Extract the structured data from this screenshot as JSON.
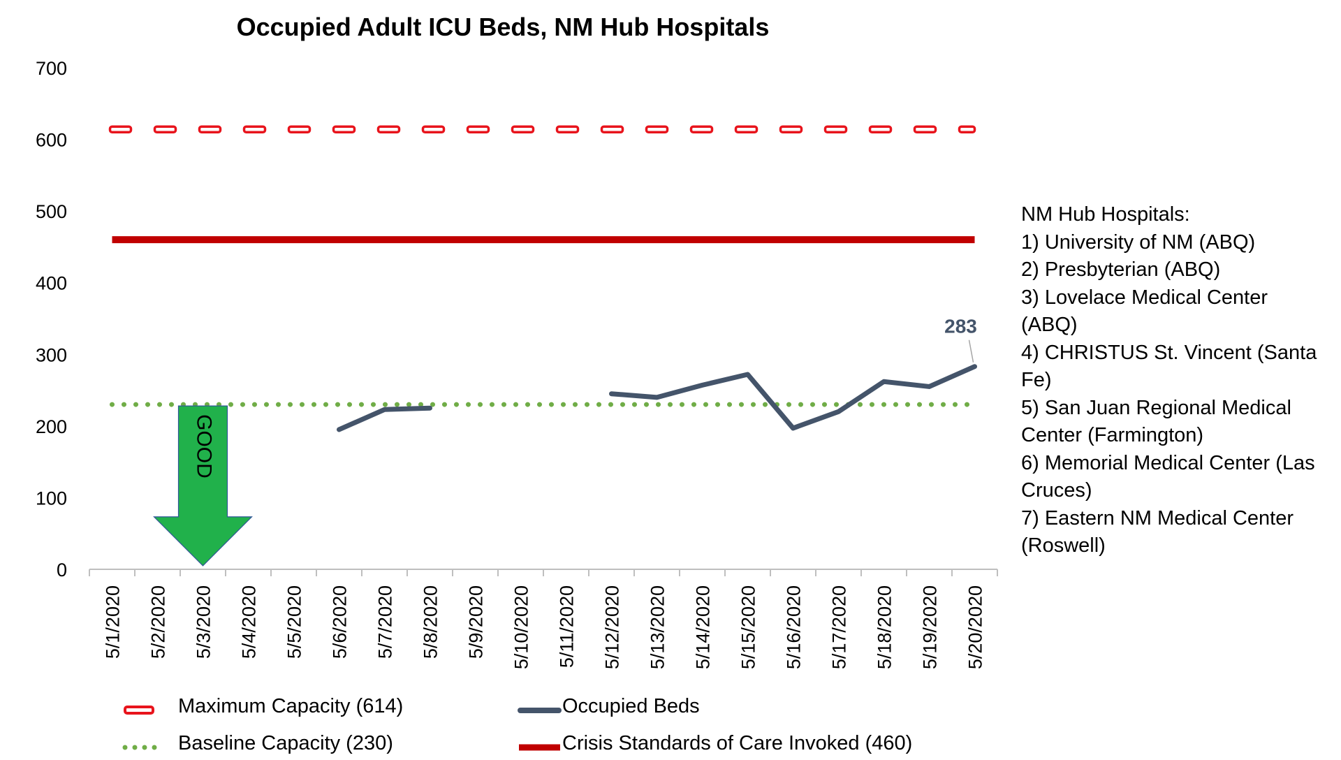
{
  "chart_data": {
    "type": "line",
    "title": "Occupied Adult ICU Beds, NM Hub Hospitals",
    "xlabel": "",
    "ylabel": "",
    "ylim": [
      0,
      700
    ],
    "yticks": [
      "0",
      "100",
      "200",
      "300",
      "400",
      "500",
      "600",
      "700"
    ],
    "categories": [
      "5/1/2020",
      "5/2/2020",
      "5/3/2020",
      "5/4/2020",
      "5/5/2020",
      "5/6/2020",
      "5/7/2020",
      "5/8/2020",
      "5/9/2020",
      "5/10/2020",
      "5/11/2020",
      "5/12/2020",
      "5/13/2020",
      "5/14/2020",
      "5/15/2020",
      "5/16/2020",
      "5/17/2020",
      "5/18/2020",
      "5/19/2020",
      "5/20/2020"
    ],
    "series": [
      {
        "name": "Maximum Capacity (614)",
        "style": "dashed-red-outline",
        "color": "#E8141C",
        "values": [
          614,
          614,
          614,
          614,
          614,
          614,
          614,
          614,
          614,
          614,
          614,
          614,
          614,
          614,
          614,
          614,
          614,
          614,
          614,
          614
        ]
      },
      {
        "name": "Occupied Beds",
        "style": "solid",
        "color": "#44546A",
        "values": [
          null,
          null,
          null,
          null,
          null,
          195,
          223,
          225,
          null,
          null,
          null,
          245,
          240,
          257,
          272,
          197,
          220,
          262,
          255,
          283
        ]
      },
      {
        "name": "Baseline Capacity (230)",
        "style": "dotted",
        "color": "#70AD47",
        "values": [
          230,
          230,
          230,
          230,
          230,
          230,
          230,
          230,
          230,
          230,
          230,
          230,
          230,
          230,
          230,
          230,
          230,
          230,
          230,
          230
        ]
      },
      {
        "name": "Crisis Standards of Care Invoked (460)",
        "style": "solid-thick",
        "color": "#C00000",
        "values": [
          460,
          460,
          460,
          460,
          460,
          460,
          460,
          460,
          460,
          460,
          460,
          460,
          460,
          460,
          460,
          460,
          460,
          460,
          460,
          460
        ]
      }
    ],
    "data_label": {
      "series": "Occupied Beds",
      "index": 19,
      "text": "283"
    },
    "arrow_annotation": {
      "text": "GOOD",
      "color": "#21B14B",
      "from_value": 228,
      "to_value": 5,
      "category_index": 2
    },
    "legend_position": "bottom",
    "grid": false
  },
  "notes": {
    "heading": "NM Hub Hospitals:",
    "items": [
      "1) University of NM (ABQ)",
      "2) Presbyterian (ABQ)",
      "3) Lovelace Medical Center (ABQ)",
      "4) CHRISTUS St. Vincent (Santa Fe)",
      "5) San Juan Regional Medical Center (Farmington)",
      "6) Memorial Medical Center (Las Cruces)",
      "7) Eastern NM Medical Center (Roswell)"
    ]
  }
}
